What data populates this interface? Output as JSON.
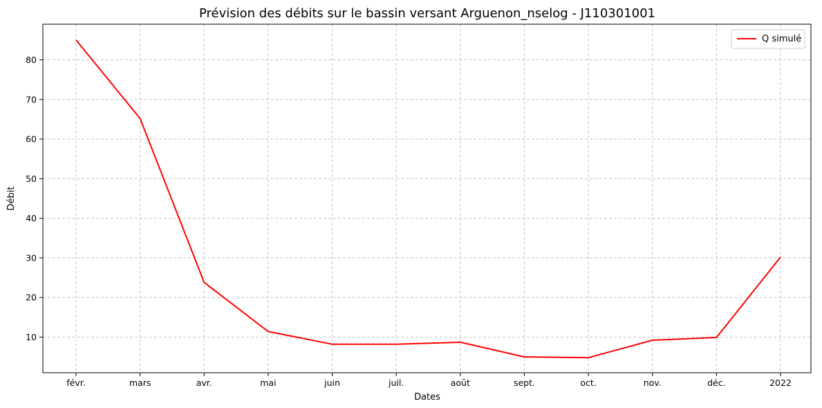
{
  "chart_data": {
    "type": "line",
    "title": "Prévision des débits sur le bassin versant Arguenon_nselog - J110301001",
    "xlabel": "Dates",
    "ylabel": "Débit",
    "categories": [
      "févr.",
      "mars",
      "avr.",
      "mai",
      "juin",
      "juil.",
      "août",
      "sept.",
      "oct.",
      "nov.",
      "déc.",
      "2022"
    ],
    "series": [
      {
        "name": "Q simulé",
        "color": "#ff0000",
        "values": [
          85.0,
          65.2,
          23.8,
          11.4,
          8.2,
          8.2,
          8.7,
          5.0,
          4.8,
          9.2,
          9.9,
          30.2
        ]
      }
    ],
    "ylim": [
      1.0,
      89.0
    ],
    "yticks": [
      10,
      20,
      30,
      40,
      50,
      60,
      70,
      80
    ],
    "grid": true,
    "legend_position": "top-right"
  }
}
